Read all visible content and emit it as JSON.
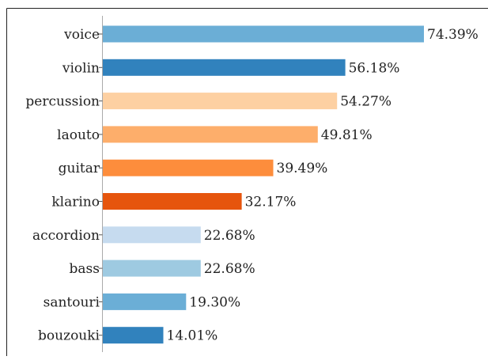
{
  "chart_data": {
    "type": "bar",
    "orientation": "horizontal",
    "title": "",
    "xlabel": "",
    "ylabel": "",
    "xlim": [
      0,
      80
    ],
    "grid": false,
    "legend": "none",
    "categories": [
      "voice",
      "violin",
      "percussion",
      "laouto",
      "guitar",
      "klarino",
      "accordion",
      "bass",
      "santouri",
      "bouzouki"
    ],
    "values": [
      74.39,
      56.18,
      54.27,
      49.81,
      39.49,
      32.17,
      22.68,
      22.68,
      19.3,
      14.01
    ],
    "value_labels": [
      "74.39%",
      "56.18%",
      "54.27%",
      "49.81%",
      "39.49%",
      "32.17%",
      "22.68%",
      "22.68%",
      "19.30%",
      "14.01%"
    ],
    "colors": [
      "#6baed6",
      "#3182bd",
      "#fdd0a2",
      "#fdae6b",
      "#fd8d3c",
      "#e6550d",
      "#c6dbef",
      "#9ecae1",
      "#6baed6",
      "#3182bd"
    ]
  }
}
